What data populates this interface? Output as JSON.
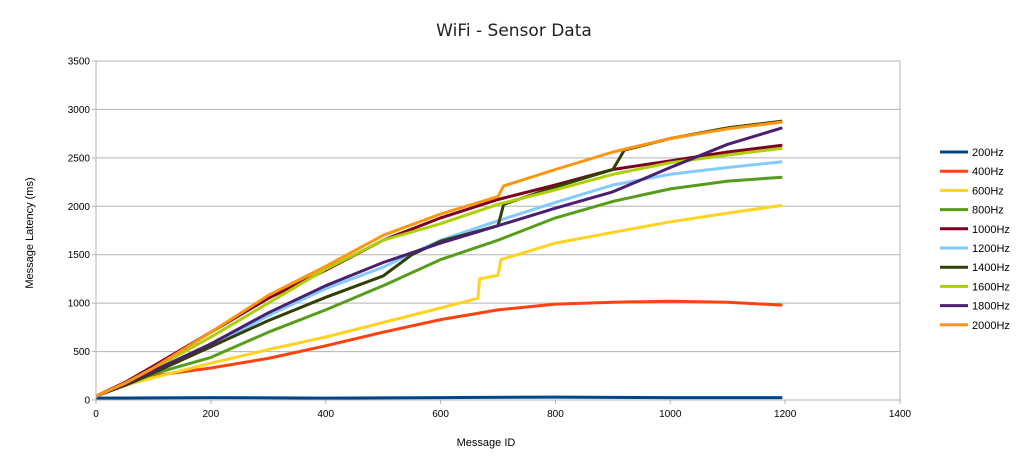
{
  "chart_data": {
    "type": "line",
    "title": "WiFi - Sensor Data",
    "xlabel": "Message ID",
    "ylabel": "Message Latency (ms)",
    "xlim": [
      0,
      1400
    ],
    "ylim": [
      0,
      3500
    ],
    "xticks": [
      "0",
      "200",
      "400",
      "600",
      "800",
      "1000",
      "1200",
      "1400"
    ],
    "yticks": [
      "0",
      "500",
      "1000",
      "1500",
      "2000",
      "2500",
      "3000",
      "3500"
    ],
    "grid": "horizontal",
    "legend_position": "right",
    "series": [
      {
        "name": "200Hz",
        "color": "#004586",
        "points": [
          [
            0,
            20
          ],
          [
            200,
            25
          ],
          [
            400,
            20
          ],
          [
            600,
            25
          ],
          [
            800,
            30
          ],
          [
            1000,
            25
          ],
          [
            1195,
            25
          ]
        ]
      },
      {
        "name": "400Hz",
        "color": "#ff420e",
        "points": [
          [
            0,
            40
          ],
          [
            50,
            180
          ],
          [
            100,
            250
          ],
          [
            200,
            330
          ],
          [
            300,
            430
          ],
          [
            400,
            560
          ],
          [
            500,
            700
          ],
          [
            600,
            830
          ],
          [
            700,
            930
          ],
          [
            800,
            990
          ],
          [
            900,
            1010
          ],
          [
            1000,
            1020
          ],
          [
            1100,
            1010
          ],
          [
            1195,
            980
          ]
        ]
      },
      {
        "name": "600Hz",
        "color": "#ffd320",
        "points": [
          [
            0,
            40
          ],
          [
            50,
            150
          ],
          [
            100,
            230
          ],
          [
            200,
            380
          ],
          [
            300,
            520
          ],
          [
            400,
            650
          ],
          [
            500,
            800
          ],
          [
            600,
            950
          ],
          [
            665,
            1050
          ],
          [
            668,
            1250
          ],
          [
            700,
            1290
          ],
          [
            705,
            1450
          ],
          [
            800,
            1620
          ],
          [
            900,
            1730
          ],
          [
            1000,
            1840
          ],
          [
            1100,
            1930
          ],
          [
            1195,
            2010
          ]
        ]
      },
      {
        "name": "800Hz",
        "color": "#579d1c",
        "points": [
          [
            0,
            40
          ],
          [
            50,
            150
          ],
          [
            100,
            270
          ],
          [
            200,
            440
          ],
          [
            300,
            700
          ],
          [
            400,
            930
          ],
          [
            500,
            1180
          ],
          [
            600,
            1450
          ],
          [
            700,
            1650
          ],
          [
            800,
            1880
          ],
          [
            900,
            2050
          ],
          [
            1000,
            2180
          ],
          [
            1100,
            2260
          ],
          [
            1195,
            2300
          ]
        ]
      },
      {
        "name": "1000Hz",
        "color": "#7e0021",
        "points": [
          [
            0,
            40
          ],
          [
            50,
            180
          ],
          [
            100,
            350
          ],
          [
            200,
            700
          ],
          [
            300,
            1050
          ],
          [
            400,
            1340
          ],
          [
            500,
            1650
          ],
          [
            600,
            1880
          ],
          [
            700,
            2070
          ],
          [
            800,
            2220
          ],
          [
            900,
            2380
          ],
          [
            1000,
            2470
          ],
          [
            1100,
            2560
          ],
          [
            1195,
            2630
          ]
        ]
      },
      {
        "name": "1200Hz",
        "color": "#83caff",
        "points": [
          [
            0,
            40
          ],
          [
            50,
            160
          ],
          [
            100,
            300
          ],
          [
            200,
            550
          ],
          [
            300,
            870
          ],
          [
            400,
            1150
          ],
          [
            500,
            1370
          ],
          [
            545,
            1500
          ],
          [
            600,
            1650
          ],
          [
            700,
            1850
          ],
          [
            800,
            2040
          ],
          [
            900,
            2220
          ],
          [
            1000,
            2330
          ],
          [
            1100,
            2400
          ],
          [
            1195,
            2460
          ]
        ]
      },
      {
        "name": "1400Hz",
        "color": "#314004",
        "points": [
          [
            0,
            40
          ],
          [
            50,
            150
          ],
          [
            100,
            280
          ],
          [
            200,
            550
          ],
          [
            300,
            820
          ],
          [
            400,
            1060
          ],
          [
            500,
            1280
          ],
          [
            550,
            1500
          ],
          [
            600,
            1640
          ],
          [
            700,
            1800
          ],
          [
            710,
            2020
          ],
          [
            800,
            2200
          ],
          [
            900,
            2380
          ],
          [
            920,
            2580
          ],
          [
            1000,
            2700
          ],
          [
            1100,
            2810
          ],
          [
            1195,
            2880
          ]
        ]
      },
      {
        "name": "1600Hz",
        "color": "#aecf00",
        "points": [
          [
            0,
            40
          ],
          [
            50,
            170
          ],
          [
            100,
            320
          ],
          [
            200,
            650
          ],
          [
            300,
            1000
          ],
          [
            400,
            1350
          ],
          [
            500,
            1650
          ],
          [
            600,
            1820
          ],
          [
            700,
            2020
          ],
          [
            800,
            2170
          ],
          [
            900,
            2330
          ],
          [
            1000,
            2450
          ],
          [
            1100,
            2530
          ],
          [
            1195,
            2600
          ]
        ]
      },
      {
        "name": "1800Hz",
        "color": "#4b1f6f",
        "points": [
          [
            0,
            40
          ],
          [
            50,
            160
          ],
          [
            100,
            300
          ],
          [
            200,
            580
          ],
          [
            300,
            900
          ],
          [
            400,
            1180
          ],
          [
            500,
            1420
          ],
          [
            600,
            1620
          ],
          [
            700,
            1800
          ],
          [
            800,
            1980
          ],
          [
            900,
            2150
          ],
          [
            1000,
            2400
          ],
          [
            1100,
            2640
          ],
          [
            1195,
            2810
          ]
        ]
      },
      {
        "name": "2000Hz",
        "color": "#ff950e",
        "points": [
          [
            0,
            40
          ],
          [
            50,
            170
          ],
          [
            100,
            330
          ],
          [
            200,
            700
          ],
          [
            300,
            1080
          ],
          [
            400,
            1380
          ],
          [
            500,
            1700
          ],
          [
            600,
            1920
          ],
          [
            700,
            2100
          ],
          [
            710,
            2210
          ],
          [
            800,
            2380
          ],
          [
            900,
            2560
          ],
          [
            1000,
            2700
          ],
          [
            1100,
            2800
          ],
          [
            1195,
            2870
          ]
        ]
      }
    ]
  }
}
